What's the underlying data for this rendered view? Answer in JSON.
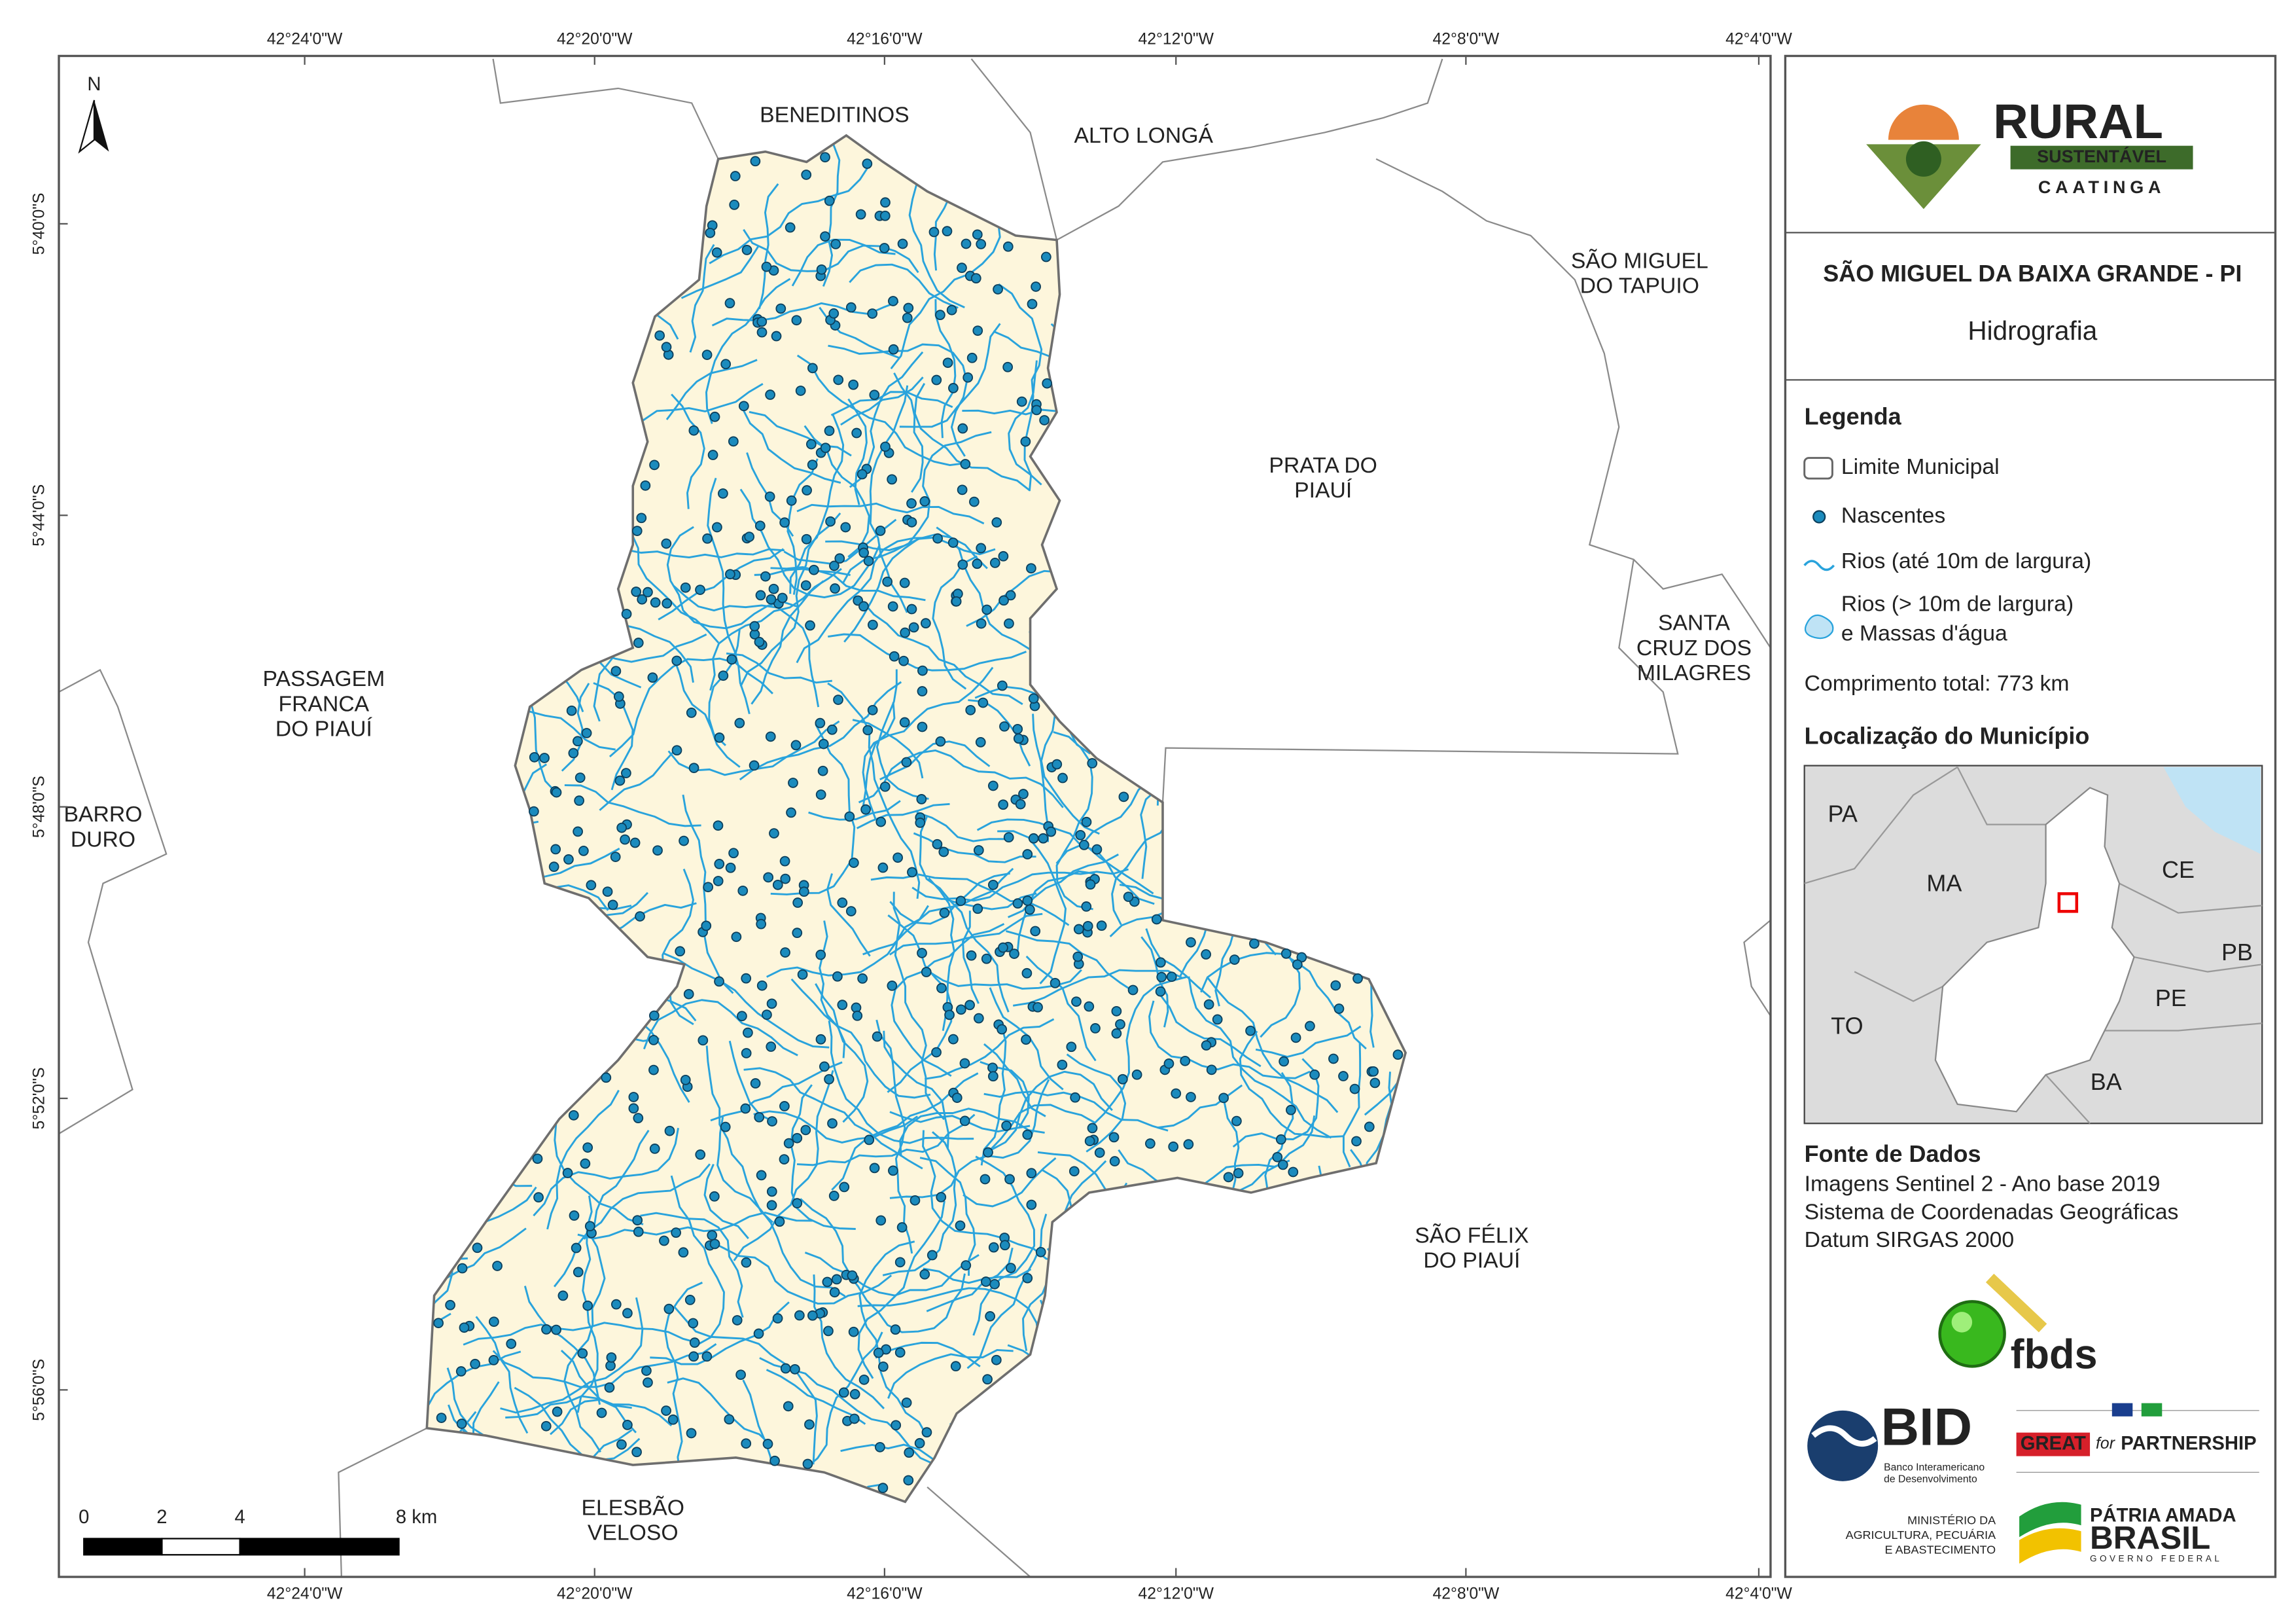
{
  "map": {
    "north_arrow": "N",
    "lon_labels": [
      "42°24'0\"W",
      "42°20'0\"W",
      "42°16'0\"W",
      "42°12'0\"W",
      "42°8'0\"W",
      "42°4'0\"W"
    ],
    "lat_labels": [
      "5°40'0\"S",
      "5°44'0\"S",
      "5°48'0\"S",
      "5°52'0\"S",
      "5°56'0\"S"
    ],
    "places": [
      [
        "BENEDITINOS"
      ],
      [
        "ALTO LONGÁ"
      ],
      [
        "SÃO MIGUEL",
        "DO TAPUIO"
      ],
      [
        "PRATA DO",
        "PIAUÍ"
      ],
      [
        "SANTA",
        "CRUZ DOS",
        "MILAGRES"
      ],
      [
        "PASSAGEM",
        "FRANCA",
        "DO PIAUÍ"
      ],
      [
        "BARRO",
        "DURO"
      ],
      [
        "SÃO FÉLIX",
        "DO PIAUÍ"
      ],
      [
        "ELESBÃO",
        "VELOSO"
      ]
    ],
    "scale_bar": [
      "0",
      "2",
      "4",
      "8 km"
    ]
  },
  "panel": {
    "logo": {
      "title": "RURAL",
      "band": "SUSTENTÁVEL",
      "subtitle": "CAATINGA"
    },
    "title": "SÃO MIGUEL DA BAIXA GRANDE - PI",
    "subtitle": "Hidrografia",
    "legend": {
      "title": "Legenda",
      "items": [
        [
          "Limite Municipal"
        ],
        [
          "Nascentes"
        ],
        [
          "Rios (até 10m de largura)"
        ],
        [
          "Rios (> 10m de largura)",
          "e Massas d'água"
        ]
      ],
      "total": "Comprimento total:  773 km"
    },
    "location": {
      "title": "Localização do Município",
      "states": [
        "PA",
        "MA",
        "CE",
        "PB",
        "TO",
        "PE",
        "BA"
      ]
    },
    "source": {
      "title": "Fonte de Dados",
      "lines": [
        "Imagens Sentinel 2 - Ano base 2019",
        "Sistema de Coordenadas Geográficas",
        "Datum SIRGAS 2000"
      ]
    },
    "partners": {
      "fbds": "fbds",
      "bid": "BID",
      "bid_lines": [
        "Banco Interamericano",
        "de Desenvolvimento"
      ],
      "great": "GREAT",
      "for": "for",
      "partnership": "PARTNERSHIP",
      "ministry": [
        "MINISTÉRIO DA",
        "AGRICULTURA, PECUÁRIA",
        "E ABASTECIMENTO"
      ],
      "brasil": [
        "PÁTRIA AMADA",
        "BRASIL",
        "GOVERNO FEDERAL"
      ]
    }
  }
}
